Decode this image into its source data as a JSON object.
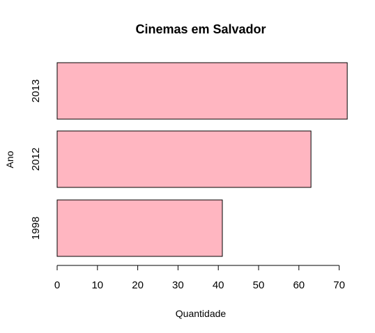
{
  "chart_data": {
    "type": "bar",
    "orientation": "horizontal",
    "title": "Cinemas em Salvador",
    "xlabel": "Quantidade",
    "ylabel": "Ano",
    "categories": [
      "1998",
      "2012",
      "2013"
    ],
    "values": [
      41,
      63,
      72
    ],
    "xlim": [
      0,
      72
    ],
    "xticks": [
      "0",
      "10",
      "20",
      "30",
      "40",
      "50",
      "60",
      "70"
    ],
    "bar_color": "#ffb6c1",
    "border_color": "#000000",
    "grid": false
  }
}
